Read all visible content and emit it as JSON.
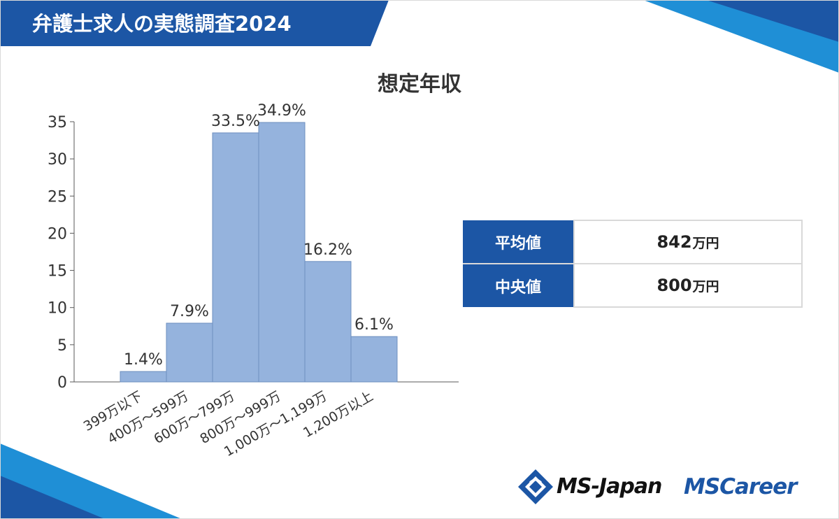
{
  "header": {
    "title": "弁護士求人の実態調査2024"
  },
  "colors": {
    "brand_blue": "#1c56a5",
    "bar_fill": "#95b3dd",
    "bar_stroke": "#6d8fbf",
    "axis": "#595959"
  },
  "chart_data": {
    "type": "bar",
    "title": "想定年収",
    "categories": [
      "399万以下",
      "400万～599万",
      "600万～799万",
      "800万～999万",
      "1,000万～1,199万",
      "1,200万以上"
    ],
    "values": [
      1.4,
      7.9,
      33.5,
      34.9,
      16.2,
      6.1
    ],
    "value_labels": [
      "1.4%",
      "7.9%",
      "33.5%",
      "34.9%",
      "16.2%",
      "6.1%"
    ],
    "ylim": [
      0,
      35
    ],
    "yticks": [
      0,
      5,
      10,
      15,
      20,
      25,
      30,
      35
    ],
    "xlabel": "",
    "ylabel": "",
    "grid": false,
    "legend": "none"
  },
  "stats": [
    {
      "label": "平均値",
      "value": "842",
      "unit": "万円"
    },
    {
      "label": "中央値",
      "value": "800",
      "unit": "万円"
    }
  ],
  "logos": {
    "ms_japan_icon": "ms-japan-diamond-icon",
    "ms_japan": "MS-Japan",
    "ms_career": "MSCareer"
  }
}
